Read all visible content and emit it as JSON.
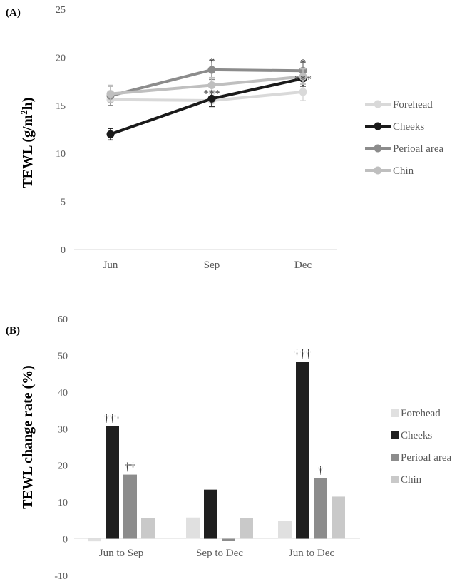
{
  "chart_data": [
    {
      "type": "line",
      "panel_label": "(A)",
      "ylabel": "TEWL (g/m²h)",
      "ylabel_parts": [
        "TEWL (g/m",
        "2",
        "h)"
      ],
      "categories": [
        "Jun",
        "Sep",
        "Dec"
      ],
      "ylim": [
        0,
        25
      ],
      "yticks": [
        "0",
        "5",
        "10",
        "15",
        "20",
        "25"
      ],
      "grid": false,
      "legend_position": "right",
      "series": [
        {
          "name": "Forehead",
          "values": [
            15.6,
            15.5,
            16.4
          ],
          "error": [
            0.6,
            0.7,
            0.9
          ],
          "color": "#d9d9d9"
        },
        {
          "name": "Cheeks",
          "values": [
            12.0,
            15.7,
            17.8
          ],
          "error": [
            0.6,
            0.8,
            0.8
          ],
          "color": "#1a1a1a"
        },
        {
          "name": "Perioal area",
          "values": [
            16.0,
            18.7,
            18.6
          ],
          "error": [
            1.0,
            1.0,
            0.9
          ],
          "color": "#8c8c8c"
        },
        {
          "name": "Chin",
          "values": [
            16.2,
            17.1,
            18.0
          ],
          "error": [
            0.9,
            0.8,
            0.8
          ],
          "color": "#bfbfbf"
        }
      ],
      "annotations": [
        {
          "text": "*",
          "category": "Sep",
          "y": 19.8
        },
        {
          "text": "***",
          "category": "Sep",
          "y": 16.5
        },
        {
          "text": "*",
          "category": "Dec",
          "y": 19.7
        },
        {
          "text": "***",
          "category": "Dec",
          "y": 18.0
        }
      ]
    },
    {
      "type": "bar",
      "panel_label": "(B)",
      "ylabel": "TEWL change rate (%)",
      "categories": [
        "Jun to Sep",
        "Sep to Dec",
        "Jun to Dec"
      ],
      "ylim": [
        -10,
        60
      ],
      "yticks": [
        "-10",
        "0",
        "10",
        "20",
        "30",
        "40",
        "50",
        "60"
      ],
      "grid": false,
      "legend_position": "right",
      "series": [
        {
          "name": "Forehead",
          "values": [
            -0.7,
            5.8,
            4.8
          ],
          "color": "#e0e0e0"
        },
        {
          "name": "Cheeks",
          "values": [
            30.8,
            13.4,
            48.3
          ],
          "color": "#1f1f1f"
        },
        {
          "name": "Perioal area",
          "values": [
            17.5,
            -0.6,
            16.6
          ],
          "color": "#8c8c8c"
        },
        {
          "name": "Chin",
          "values": [
            5.6,
            5.7,
            11.5
          ],
          "color": "#c9c9c9"
        }
      ],
      "annotations": [
        {
          "text": "†††",
          "category": "Jun to Sep",
          "series": "Cheeks"
        },
        {
          "text": "††",
          "category": "Jun to Sep",
          "series": "Perioal area"
        },
        {
          "text": "†††",
          "category": "Jun to Dec",
          "series": "Cheeks"
        },
        {
          "text": "†",
          "category": "Jun to Dec",
          "series": "Perioal area"
        }
      ]
    }
  ]
}
